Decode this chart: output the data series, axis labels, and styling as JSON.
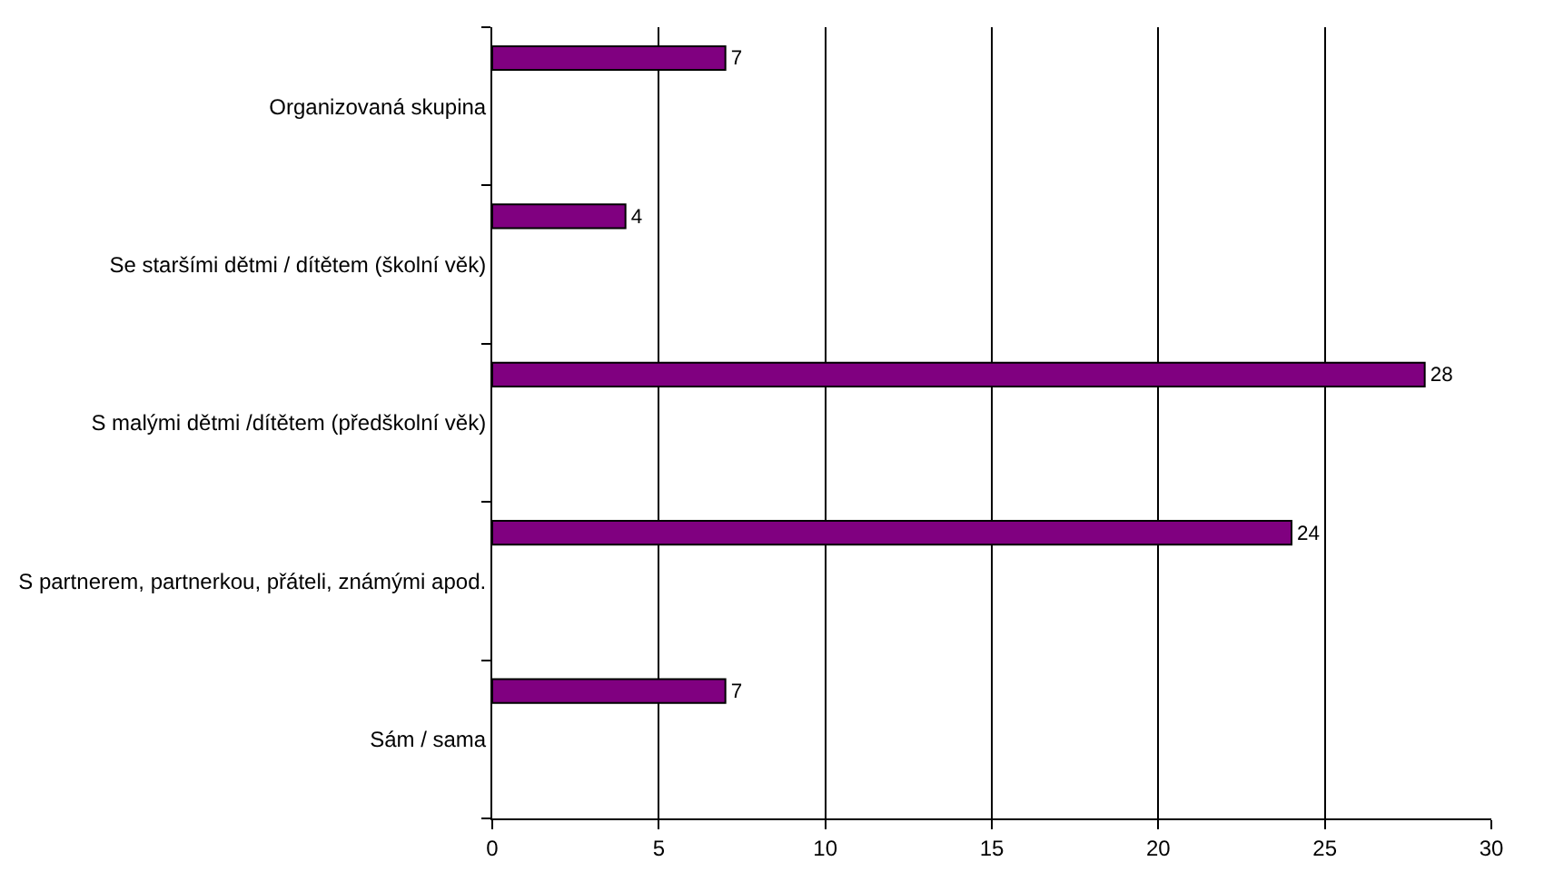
{
  "chart_data": {
    "type": "bar",
    "orientation": "horizontal",
    "categories": [
      "Organizovaná skupina",
      "Se staršími dětmi / dítětem (školní věk)",
      "S malými dětmi /dítětem (předškolní věk)",
      "S partnerem, partnerkou, přáteli, známými apod.",
      "Sám / sama"
    ],
    "values": [
      7,
      4,
      28,
      24,
      7
    ],
    "color": "#800080",
    "xlim": [
      0,
      30
    ],
    "xticks": [
      0,
      5,
      10,
      15,
      20,
      25,
      30
    ],
    "grid": "x",
    "data_labels": true
  }
}
